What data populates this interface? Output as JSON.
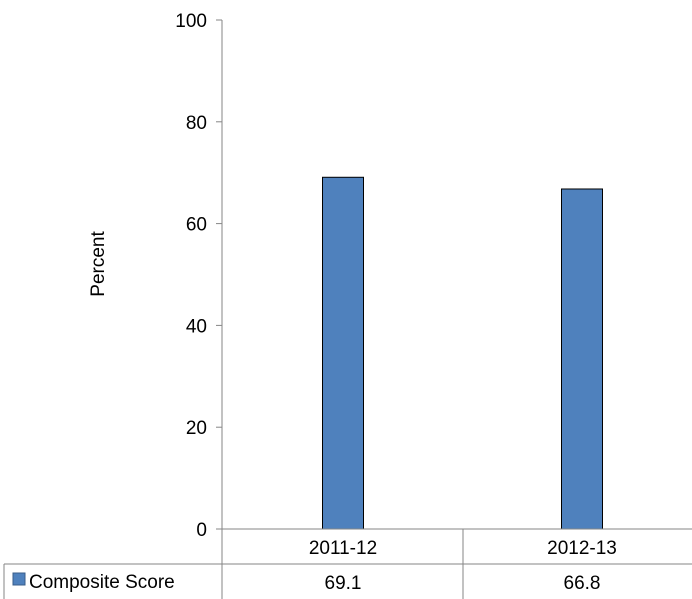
{
  "chart_data": {
    "type": "bar",
    "categories": [
      "2011-12",
      "2012-13"
    ],
    "series": [
      {
        "name": "Composite Score",
        "values": [
          69.1,
          66.8
        ],
        "color": "#4F81BD"
      }
    ],
    "ylabel": "Percent",
    "ylim": [
      0,
      100
    ],
    "yticks": [
      "0",
      "20",
      "40",
      "60",
      "80",
      "100"
    ],
    "data_table": {
      "row_label": "Composite Score",
      "values": [
        "69.1",
        "66.8"
      ]
    },
    "grid": false,
    "legend": "data-table-row"
  }
}
